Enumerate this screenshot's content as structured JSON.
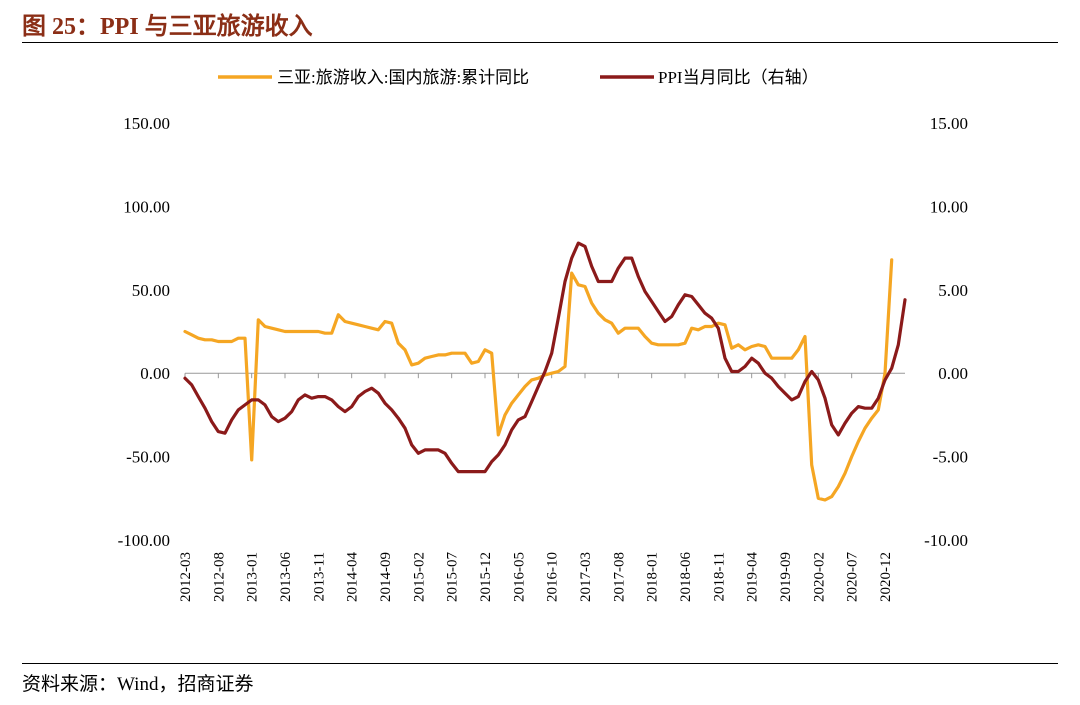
{
  "header": {
    "title": "图 25：PPI 与三亚旅游收入"
  },
  "footer": {
    "source": "资料来源：Wind，招商证券"
  },
  "chart_data": {
    "type": "line",
    "x_ticks": [
      "2012-03",
      "2012-08",
      "2013-01",
      "2013-06",
      "2013-11",
      "2014-04",
      "2014-09",
      "2015-02",
      "2015-07",
      "2015-12",
      "2016-05",
      "2016-10",
      "2017-03",
      "2017-08",
      "2018-01",
      "2018-06",
      "2018-11",
      "2019-04",
      "2019-09",
      "2020-02",
      "2020-07",
      "2020-12"
    ],
    "y_left": {
      "min": -100,
      "max": 150,
      "ticks": [
        "150.00",
        "100.00",
        "50.00",
        "0.00",
        "-50.00",
        "-100.00"
      ]
    },
    "y_right": {
      "min": -10,
      "max": 15,
      "ticks": [
        "15.00",
        "10.00",
        "5.00",
        "0.00",
        "-5.00",
        "-10.00"
      ]
    },
    "series": [
      {
        "name": "三亚:旅游收入:国内旅游:累计同比",
        "axis": "left",
        "color": "#F5A623",
        "points": [
          [
            "2012-03",
            25
          ],
          [
            "2012-04",
            23
          ],
          [
            "2012-05",
            21
          ],
          [
            "2012-06",
            20
          ],
          [
            "2012-07",
            20
          ],
          [
            "2012-08",
            19
          ],
          [
            "2012-09",
            19
          ],
          [
            "2012-10",
            19
          ],
          [
            "2012-11",
            21
          ],
          [
            "2012-12",
            21
          ],
          [
            "2013-01",
            -52
          ],
          [
            "2013-02",
            32
          ],
          [
            "2013-03",
            28
          ],
          [
            "2013-04",
            27
          ],
          [
            "2013-05",
            26
          ],
          [
            "2013-06",
            25
          ],
          [
            "2013-07",
            25
          ],
          [
            "2013-08",
            25
          ],
          [
            "2013-09",
            25
          ],
          [
            "2013-10",
            25
          ],
          [
            "2013-11",
            25
          ],
          [
            "2013-12",
            24
          ],
          [
            "2014-01",
            24
          ],
          [
            "2014-02",
            35
          ],
          [
            "2014-03",
            31
          ],
          [
            "2014-04",
            30
          ],
          [
            "2014-05",
            29
          ],
          [
            "2014-06",
            28
          ],
          [
            "2014-07",
            27
          ],
          [
            "2014-08",
            26
          ],
          [
            "2014-09",
            31
          ],
          [
            "2014-10",
            30
          ],
          [
            "2014-11",
            18
          ],
          [
            "2014-12",
            14
          ],
          [
            "2015-01",
            5
          ],
          [
            "2015-02",
            6
          ],
          [
            "2015-03",
            9
          ],
          [
            "2015-04",
            10
          ],
          [
            "2015-05",
            11
          ],
          [
            "2015-06",
            11
          ],
          [
            "2015-07",
            12
          ],
          [
            "2015-08",
            12
          ],
          [
            "2015-09",
            12
          ],
          [
            "2015-10",
            6
          ],
          [
            "2015-11",
            7
          ],
          [
            "2015-12",
            14
          ],
          [
            "2016-01",
            12
          ],
          [
            "2016-02",
            -37
          ],
          [
            "2016-03",
            -25
          ],
          [
            "2016-04",
            -18
          ],
          [
            "2016-05",
            -13
          ],
          [
            "2016-06",
            -8
          ],
          [
            "2016-07",
            -4
          ],
          [
            "2016-08",
            -3
          ],
          [
            "2016-09",
            -1
          ],
          [
            "2016-10",
            0
          ],
          [
            "2016-11",
            1
          ],
          [
            "2016-12",
            4
          ],
          [
            "2017-01",
            60
          ],
          [
            "2017-02",
            53
          ],
          [
            "2017-03",
            52
          ],
          [
            "2017-04",
            42
          ],
          [
            "2017-05",
            36
          ],
          [
            "2017-06",
            32
          ],
          [
            "2017-07",
            30
          ],
          [
            "2017-08",
            24
          ],
          [
            "2017-09",
            27
          ],
          [
            "2017-10",
            27
          ],
          [
            "2017-11",
            27
          ],
          [
            "2017-12",
            22
          ],
          [
            "2018-01",
            18
          ],
          [
            "2018-02",
            17
          ],
          [
            "2018-03",
            17
          ],
          [
            "2018-04",
            17
          ],
          [
            "2018-05",
            17
          ],
          [
            "2018-06",
            18
          ],
          [
            "2018-07",
            27
          ],
          [
            "2018-08",
            26
          ],
          [
            "2018-09",
            28
          ],
          [
            "2018-10",
            28
          ],
          [
            "2018-11",
            30
          ],
          [
            "2018-12",
            29
          ],
          [
            "2019-01",
            15
          ],
          [
            "2019-02",
            17
          ],
          [
            "2019-03",
            14
          ],
          [
            "2019-04",
            16
          ],
          [
            "2019-05",
            17
          ],
          [
            "2019-06",
            16
          ],
          [
            "2019-07",
            9
          ],
          [
            "2019-08",
            9
          ],
          [
            "2019-09",
            9
          ],
          [
            "2019-10",
            9
          ],
          [
            "2019-11",
            14
          ],
          [
            "2019-12",
            22
          ],
          [
            "2020-01",
            -55
          ],
          [
            "2020-02",
            -75
          ],
          [
            "2020-03",
            -76
          ],
          [
            "2020-04",
            -74
          ],
          [
            "2020-05",
            -68
          ],
          [
            "2020-06",
            -60
          ],
          [
            "2020-07",
            -50
          ],
          [
            "2020-08",
            -41
          ],
          [
            "2020-09",
            -33
          ],
          [
            "2020-10",
            -27
          ],
          [
            "2020-11",
            -22
          ],
          [
            "2020-12",
            0
          ],
          [
            "2021-01",
            68
          ]
        ]
      },
      {
        "name": "PPI当月同比（右轴）",
        "axis": "right",
        "color": "#8B1A1A",
        "points": [
          [
            "2012-03",
            -0.3
          ],
          [
            "2012-04",
            -0.7
          ],
          [
            "2012-05",
            -1.4
          ],
          [
            "2012-06",
            -2.1
          ],
          [
            "2012-07",
            -2.9
          ],
          [
            "2012-08",
            -3.5
          ],
          [
            "2012-09",
            -3.6
          ],
          [
            "2012-10",
            -2.8
          ],
          [
            "2012-11",
            -2.2
          ],
          [
            "2012-12",
            -1.9
          ],
          [
            "2013-01",
            -1.6
          ],
          [
            "2013-02",
            -1.6
          ],
          [
            "2013-03",
            -1.9
          ],
          [
            "2013-04",
            -2.6
          ],
          [
            "2013-05",
            -2.9
          ],
          [
            "2013-06",
            -2.7
          ],
          [
            "2013-07",
            -2.3
          ],
          [
            "2013-08",
            -1.6
          ],
          [
            "2013-09",
            -1.3
          ],
          [
            "2013-10",
            -1.5
          ],
          [
            "2013-11",
            -1.4
          ],
          [
            "2013-12",
            -1.4
          ],
          [
            "2014-01",
            -1.6
          ],
          [
            "2014-02",
            -2.0
          ],
          [
            "2014-03",
            -2.3
          ],
          [
            "2014-04",
            -2.0
          ],
          [
            "2014-05",
            -1.4
          ],
          [
            "2014-06",
            -1.1
          ],
          [
            "2014-07",
            -0.9
          ],
          [
            "2014-08",
            -1.2
          ],
          [
            "2014-09",
            -1.8
          ],
          [
            "2014-10",
            -2.2
          ],
          [
            "2014-11",
            -2.7
          ],
          [
            "2014-12",
            -3.3
          ],
          [
            "2015-01",
            -4.3
          ],
          [
            "2015-02",
            -4.8
          ],
          [
            "2015-03",
            -4.6
          ],
          [
            "2015-04",
            -4.6
          ],
          [
            "2015-05",
            -4.6
          ],
          [
            "2015-06",
            -4.8
          ],
          [
            "2015-07",
            -5.4
          ],
          [
            "2015-08",
            -5.9
          ],
          [
            "2015-09",
            -5.9
          ],
          [
            "2015-10",
            -5.9
          ],
          [
            "2015-11",
            -5.9
          ],
          [
            "2015-12",
            -5.9
          ],
          [
            "2016-01",
            -5.3
          ],
          [
            "2016-02",
            -4.9
          ],
          [
            "2016-03",
            -4.3
          ],
          [
            "2016-04",
            -3.4
          ],
          [
            "2016-05",
            -2.8
          ],
          [
            "2016-06",
            -2.6
          ],
          [
            "2016-07",
            -1.7
          ],
          [
            "2016-08",
            -0.8
          ],
          [
            "2016-09",
            0.1
          ],
          [
            "2016-10",
            1.2
          ],
          [
            "2016-11",
            3.3
          ],
          [
            "2016-12",
            5.5
          ],
          [
            "2017-01",
            6.9
          ],
          [
            "2017-02",
            7.8
          ],
          [
            "2017-03",
            7.6
          ],
          [
            "2017-04",
            6.4
          ],
          [
            "2017-05",
            5.5
          ],
          [
            "2017-06",
            5.5
          ],
          [
            "2017-07",
            5.5
          ],
          [
            "2017-08",
            6.3
          ],
          [
            "2017-09",
            6.9
          ],
          [
            "2017-10",
            6.9
          ],
          [
            "2017-11",
            5.8
          ],
          [
            "2017-12",
            4.9
          ],
          [
            "2018-01",
            4.3
          ],
          [
            "2018-02",
            3.7
          ],
          [
            "2018-03",
            3.1
          ],
          [
            "2018-04",
            3.4
          ],
          [
            "2018-05",
            4.1
          ],
          [
            "2018-06",
            4.7
          ],
          [
            "2018-07",
            4.6
          ],
          [
            "2018-08",
            4.1
          ],
          [
            "2018-09",
            3.6
          ],
          [
            "2018-10",
            3.3
          ],
          [
            "2018-11",
            2.7
          ],
          [
            "2018-12",
            0.9
          ],
          [
            "2019-01",
            0.1
          ],
          [
            "2019-02",
            0.1
          ],
          [
            "2019-03",
            0.4
          ],
          [
            "2019-04",
            0.9
          ],
          [
            "2019-05",
            0.6
          ],
          [
            "2019-06",
            0.0
          ],
          [
            "2019-07",
            -0.3
          ],
          [
            "2019-08",
            -0.8
          ],
          [
            "2019-09",
            -1.2
          ],
          [
            "2019-10",
            -1.6
          ],
          [
            "2019-11",
            -1.4
          ],
          [
            "2019-12",
            -0.5
          ],
          [
            "2020-01",
            0.1
          ],
          [
            "2020-02",
            -0.4
          ],
          [
            "2020-03",
            -1.5
          ],
          [
            "2020-04",
            -3.1
          ],
          [
            "2020-05",
            -3.7
          ],
          [
            "2020-06",
            -3.0
          ],
          [
            "2020-07",
            -2.4
          ],
          [
            "2020-08",
            -2.0
          ],
          [
            "2020-09",
            -2.1
          ],
          [
            "2020-10",
            -2.1
          ],
          [
            "2020-11",
            -1.5
          ],
          [
            "2020-12",
            -0.4
          ],
          [
            "2021-01",
            0.3
          ],
          [
            "2021-02",
            1.7
          ],
          [
            "2021-03",
            4.4
          ]
        ]
      }
    ]
  }
}
